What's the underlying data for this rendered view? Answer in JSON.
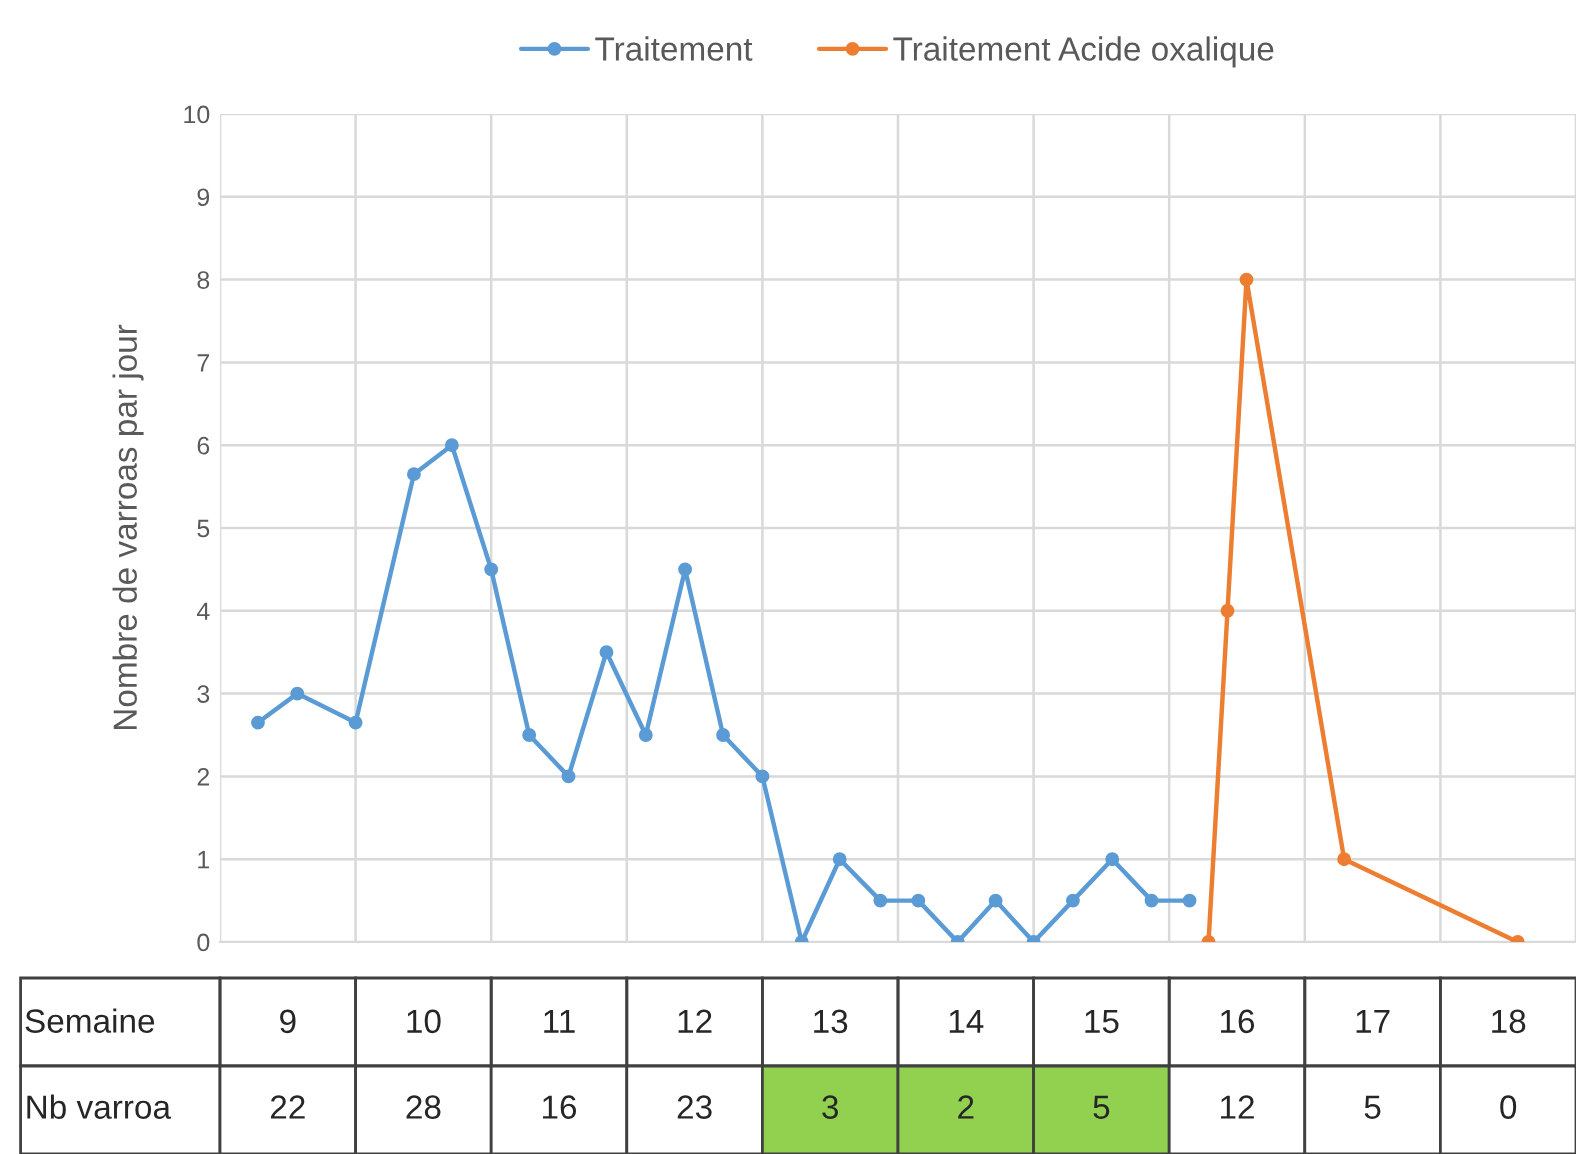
{
  "chart_data": [
    {
      "type": "line",
      "ylabel": "Nombre de varroas par jour",
      "xlabel": "Semaine",
      "xlim": [
        8.5,
        18.5
      ],
      "xticks": [
        {
          "value": 8.5,
          "label": null
        },
        9,
        {
          "value": 9.5,
          "label": null
        },
        10,
        {
          "value": 10.5,
          "label": null
        },
        11,
        {
          "value": 11.5,
          "label": null
        },
        12,
        {
          "value": 12.5,
          "label": null
        },
        13,
        {
          "value": 13.5,
          "label": null
        },
        14,
        {
          "value": 14.5,
          "label": null
        },
        15,
        {
          "value": 15.5,
          "label": null
        },
        16,
        {
          "value": 16.5,
          "label": null
        },
        17,
        {
          "value": 17.5,
          "label": null
        },
        18,
        {
          "value": 18.5,
          "label": null
        }
      ],
      "ylim": [
        0,
        10
      ],
      "yticks": [
        0,
        1,
        2,
        3,
        4,
        5,
        6,
        7,
        8,
        9,
        10
      ],
      "grid": true,
      "legend": "top",
      "marker": "circle",
      "line_style": "solid",
      "series": [
        {
          "name": "Traitement",
          "color": "#5b9bd5",
          "x": [
            8.78,
            9.07,
            9.5,
            9.93,
            10.21,
            10.5,
            10.78,
            11.07,
            11.35,
            11.64,
            11.93,
            12.21,
            12.5,
            12.79,
            13.07,
            13.37,
            13.65,
            13.94,
            14.22,
            14.5,
            14.79,
            15.08,
            15.37,
            15.65
          ],
          "values": [
            2.65,
            3,
            2.65,
            5.65,
            6,
            4.5,
            2.5,
            2,
            3.5,
            2.5,
            4.5,
            2.5,
            2,
            0,
            1,
            0.5,
            0.5,
            0,
            0.5,
            0,
            0.5,
            1,
            0.5,
            0.5
          ]
        },
        {
          "name": "Traitement Acide oxalique",
          "color": "#ed7d31",
          "x": [
            15.79,
            15.93,
            16.07,
            16.79,
            18.07
          ],
          "values": [
            0,
            4,
            8,
            1,
            0
          ]
        }
      ]
    },
    {
      "type": "heatmap",
      "categories": [
        null,
        null,
        null,
        null,
        null,
        null,
        null,
        null,
        null,
        null
      ],
      "y_categories": [
        "Nb varroa"
      ],
      "cells": [
        [
          22,
          28,
          16,
          23,
          3,
          2,
          5,
          12,
          5,
          0
        ]
      ],
      "data_labels": true,
      "colors": [
        "#ffffff",
        "#ffffff",
        "#ffffff",
        "#ffffff",
        "#92d050",
        "#92d050",
        "#92d050",
        "#ffffff",
        "#ffffff",
        "#ffffff"
      ]
    }
  ]
}
